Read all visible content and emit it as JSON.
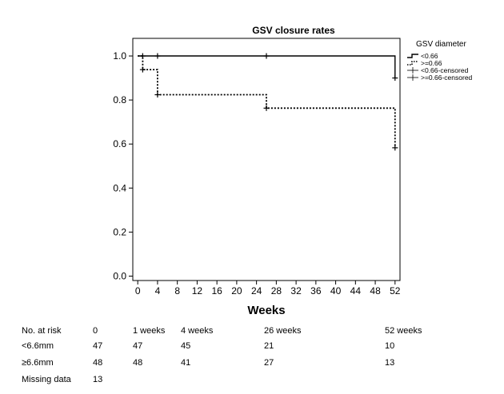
{
  "chart_data": {
    "type": "line",
    "title": "GSV closure rates",
    "xlabel": "Weeks",
    "ylabel": "",
    "xlim": [
      -1,
      53
    ],
    "ylim": [
      -0.02,
      1.08
    ],
    "xticks": [
      0,
      4,
      8,
      12,
      16,
      20,
      24,
      28,
      32,
      36,
      40,
      44,
      48,
      52
    ],
    "yticks": [
      0.0,
      0.2,
      0.4,
      0.6,
      0.8,
      1.0
    ],
    "ytick_labels": [
      "0.0",
      "0.2",
      "0.4",
      "0.6",
      "0.8",
      "1.0"
    ],
    "grid": false,
    "legend_title": "GSV diameter",
    "legend_position": "top-right-outside",
    "legend": [
      "<0.66",
      ">=0.66",
      "<0.66-censored",
      ">=0.66-censored"
    ],
    "series": [
      {
        "name": "<0.66",
        "style": "solid",
        "color": "#000000",
        "steps": [
          [
            0,
            1.0
          ],
          [
            52,
            1.0
          ],
          [
            52,
            0.9
          ]
        ],
        "censored": [
          [
            1,
            1.0
          ],
          [
            4,
            1.0
          ],
          [
            26,
            1.0
          ],
          [
            52,
            0.9
          ]
        ]
      },
      {
        "name": ">=0.66",
        "style": "dotted",
        "color": "#000000",
        "steps": [
          [
            0,
            1.0
          ],
          [
            1,
            1.0
          ],
          [
            1,
            0.938
          ],
          [
            4,
            0.938
          ],
          [
            4,
            0.824
          ],
          [
            26,
            0.824
          ],
          [
            26,
            0.763
          ],
          [
            52,
            0.763
          ],
          [
            52,
            0.583
          ]
        ],
        "censored": [
          [
            1,
            0.938
          ],
          [
            4,
            0.824
          ],
          [
            26,
            0.763
          ],
          [
            52,
            0.583
          ]
        ]
      }
    ]
  },
  "risk_table": {
    "header": [
      "No. at risk",
      "0",
      "1 weeks",
      "4 weeks",
      "26 weeks",
      "52 weeks"
    ],
    "rows": [
      [
        "<6.6mm",
        "47",
        "47",
        "45",
        "21",
        "10"
      ],
      [
        "≥6.6mm",
        "48",
        "48",
        "41",
        "27",
        "13"
      ],
      [
        "Missing data",
        "13",
        "",
        "",
        "",
        ""
      ]
    ]
  }
}
